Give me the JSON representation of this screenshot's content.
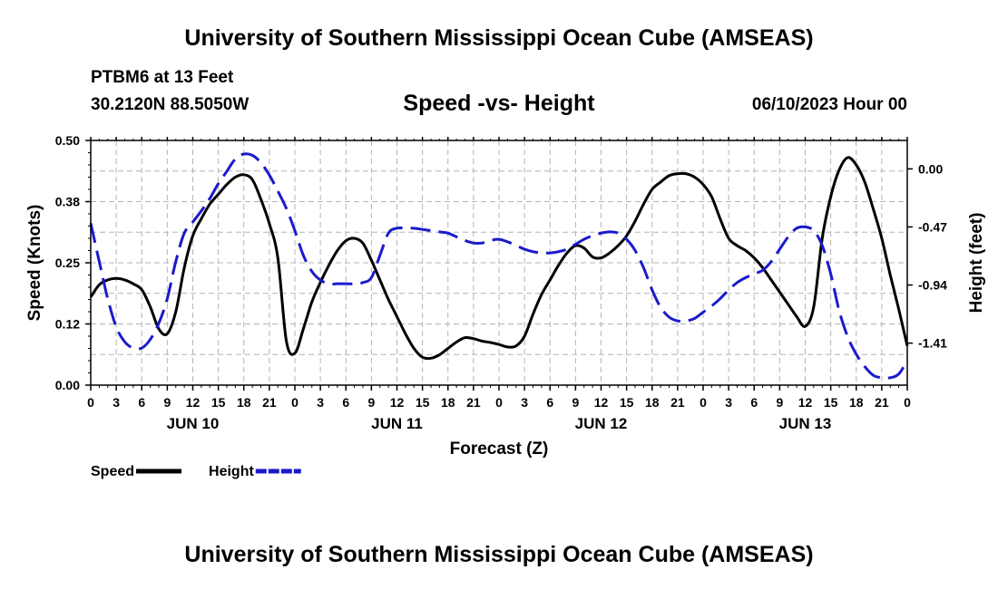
{
  "header": {
    "title": "University of Southern Mississippi Ocean Cube (AMSEAS)",
    "station": "PTBM6 at 13 Feet",
    "coordinates": "30.2120N  88.5050W",
    "chart_title": "Speed -vs- Height",
    "datetime": "06/10/2023 Hour 00"
  },
  "footer": {
    "title": "University of Southern Mississippi Ocean Cube (AMSEAS)"
  },
  "chart_data": {
    "type": "line",
    "title": "Speed -vs- Height",
    "xlabel": "Forecast (Z)",
    "ylabel": "Speed (Knots)",
    "y2label": "Height (feet)",
    "x_unit": "hours from 06/10/2023 00Z",
    "xlim": [
      0,
      96
    ],
    "ylim": [
      0,
      0.5
    ],
    "y2lim": [
      -1.75,
      0.23
    ],
    "x_ticks": [
      0,
      3,
      6,
      9,
      12,
      15,
      18,
      21,
      24,
      27,
      30,
      33,
      36,
      39,
      42,
      45,
      48,
      51,
      54,
      57,
      60,
      63,
      66,
      69,
      72,
      75,
      78,
      81,
      84,
      87,
      90,
      93,
      96
    ],
    "x_tick_labels": [
      "0",
      "3",
      "6",
      "9",
      "12",
      "15",
      "18",
      "21",
      "0",
      "3",
      "6",
      "9",
      "12",
      "15",
      "18",
      "21",
      "0",
      "3",
      "6",
      "9",
      "12",
      "15",
      "18",
      "21",
      "0",
      "3",
      "6",
      "9",
      "12",
      "15",
      "18",
      "21",
      "0"
    ],
    "day_labels": [
      {
        "x": 12,
        "label": "JUN 10"
      },
      {
        "x": 36,
        "label": "JUN 11"
      },
      {
        "x": 60,
        "label": "JUN 12"
      },
      {
        "x": 84,
        "label": "JUN 13"
      }
    ],
    "y_ticks": [
      0.0,
      0.125,
      0.25,
      0.375,
      0.5
    ],
    "y_tick_labels": [
      "0.00",
      "0.12",
      "0.25",
      "0.38",
      "0.50"
    ],
    "y2_ticks": [
      0.0,
      -0.47,
      -0.94,
      -1.41
    ],
    "y2_tick_labels": [
      "0.00",
      "-0.47",
      "-0.94",
      "-1.41"
    ],
    "series": [
      {
        "name": "Speed",
        "axis": "left",
        "color": "#000000",
        "dash": "solid",
        "x": [
          0,
          1,
          2,
          3,
          4,
          5,
          6,
          7,
          8,
          9,
          10,
          11,
          12,
          13,
          14,
          15,
          16,
          17,
          18,
          19,
          20,
          21,
          22,
          23,
          24,
          25,
          26,
          27,
          28,
          29,
          30,
          31,
          32,
          33,
          34,
          35,
          36,
          37,
          38,
          39,
          40,
          41,
          42,
          43,
          44,
          45,
          46,
          47,
          48,
          49,
          50,
          51,
          52,
          53,
          54,
          55,
          56,
          57,
          58,
          59,
          60,
          61,
          62,
          63,
          64,
          65,
          66,
          67,
          68,
          69,
          70,
          71,
          72,
          73,
          74,
          75,
          76,
          77,
          78,
          79,
          80,
          81,
          82,
          83,
          84,
          85,
          86,
          87,
          88,
          89,
          90,
          91,
          92,
          93,
          94,
          95,
          96
        ],
        "values": [
          0.18,
          0.205,
          0.215,
          0.218,
          0.215,
          0.207,
          0.195,
          0.16,
          0.115,
          0.105,
          0.15,
          0.24,
          0.305,
          0.34,
          0.37,
          0.39,
          0.41,
          0.425,
          0.43,
          0.42,
          0.38,
          0.33,
          0.26,
          0.09,
          0.065,
          0.115,
          0.17,
          0.21,
          0.245,
          0.275,
          0.295,
          0.3,
          0.29,
          0.255,
          0.215,
          0.175,
          0.14,
          0.105,
          0.075,
          0.057,
          0.055,
          0.062,
          0.075,
          0.088,
          0.097,
          0.095,
          0.09,
          0.087,
          0.083,
          0.078,
          0.08,
          0.1,
          0.145,
          0.185,
          0.215,
          0.245,
          0.27,
          0.285,
          0.28,
          0.262,
          0.26,
          0.27,
          0.285,
          0.305,
          0.335,
          0.37,
          0.4,
          0.415,
          0.428,
          0.432,
          0.432,
          0.425,
          0.41,
          0.385,
          0.34,
          0.3,
          0.285,
          0.275,
          0.26,
          0.24,
          0.215,
          0.19,
          0.165,
          0.14,
          0.12,
          0.16,
          0.3,
          0.385,
          0.44,
          0.465,
          0.45,
          0.415,
          0.36,
          0.3,
          0.225,
          0.155,
          0.08
        ]
      },
      {
        "name": "Height",
        "axis": "right",
        "color": "#1a1acc",
        "dash": "dashed",
        "x": [
          0,
          1,
          2,
          3,
          4,
          5,
          6,
          7,
          8,
          9,
          10,
          11,
          12,
          13,
          14,
          15,
          16,
          17,
          18,
          19,
          20,
          21,
          22,
          23,
          24,
          25,
          26,
          27,
          28,
          29,
          30,
          31,
          32,
          33,
          34,
          35,
          36,
          37,
          38,
          39,
          40,
          41,
          42,
          43,
          44,
          45,
          46,
          47,
          48,
          49,
          50,
          51,
          52,
          53,
          54,
          55,
          56,
          57,
          58,
          59,
          60,
          61,
          62,
          63,
          64,
          65,
          66,
          67,
          68,
          69,
          70,
          71,
          72,
          73,
          74,
          75,
          76,
          77,
          78,
          79,
          80,
          81,
          82,
          83,
          84,
          85,
          86,
          87,
          88,
          89,
          90,
          91,
          92,
          93,
          94,
          95,
          96
        ],
        "values": [
          -0.44,
          -0.75,
          -1.05,
          -1.28,
          -1.4,
          -1.45,
          -1.45,
          -1.38,
          -1.25,
          -1.05,
          -0.75,
          -0.52,
          -0.43,
          -0.34,
          -0.24,
          -0.12,
          -0.02,
          0.08,
          0.12,
          0.11,
          0.05,
          -0.05,
          -0.18,
          -0.32,
          -0.5,
          -0.7,
          -0.83,
          -0.9,
          -0.93,
          -0.93,
          -0.93,
          -0.93,
          -0.92,
          -0.88,
          -0.7,
          -0.52,
          -0.48,
          -0.48,
          -0.48,
          -0.49,
          -0.5,
          -0.51,
          -0.52,
          -0.55,
          -0.58,
          -0.6,
          -0.6,
          -0.58,
          -0.57,
          -0.59,
          -0.62,
          -0.65,
          -0.67,
          -0.68,
          -0.68,
          -0.67,
          -0.65,
          -0.61,
          -0.57,
          -0.54,
          -0.52,
          -0.51,
          -0.52,
          -0.57,
          -0.66,
          -0.8,
          -0.98,
          -1.12,
          -1.2,
          -1.23,
          -1.23,
          -1.21,
          -1.16,
          -1.11,
          -1.05,
          -0.98,
          -0.92,
          -0.88,
          -0.85,
          -0.82,
          -0.75,
          -0.65,
          -0.55,
          -0.48,
          -0.47,
          -0.5,
          -0.62,
          -0.85,
          -1.15,
          -1.36,
          -1.5,
          -1.6,
          -1.67,
          -1.69,
          -1.69,
          -1.66,
          -1.55
        ]
      }
    ],
    "legend": {
      "position": "bottom-left",
      "entries": [
        {
          "label": "Speed",
          "color": "#000000",
          "dash": "solid"
        },
        {
          "label": "Height",
          "color": "#1a1acc",
          "dash": "dashed"
        }
      ]
    }
  }
}
